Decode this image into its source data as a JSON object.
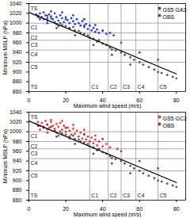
{
  "chart_data": [
    {
      "type": "scatter",
      "x_label": "Maximum wind speed (m/s)",
      "y_label": "Minimum MSLP (hPa)",
      "xlim": [
        0,
        85
      ],
      "xticks": [
        0,
        20,
        40,
        60,
        80
      ],
      "ylim": [
        860,
        1040
      ],
      "yticks": [
        860,
        880,
        900,
        920,
        940,
        960,
        980,
        1000,
        1020,
        1040
      ],
      "legend": "top-right",
      "x_categories": [
        {
          "label": "TS",
          "value": 0
        },
        {
          "label": "C1",
          "value": 33
        },
        {
          "label": "C2",
          "value": 43
        },
        {
          "label": "C3",
          "value": 50
        },
        {
          "label": "C4",
          "value": 58
        },
        {
          "label": "C5",
          "value": 70
        }
      ],
      "y_categories": [
        {
          "label": "TS",
          "value": 1040
        },
        {
          "label": "C1",
          "value": 1000
        },
        {
          "label": "C2",
          "value": 980
        },
        {
          "label": "C3",
          "value": 965
        },
        {
          "label": "C4",
          "value": 945
        },
        {
          "label": "C5",
          "value": 920
        }
      ],
      "series": [
        {
          "name": "GS5 GA3",
          "color": "#2f3fe0",
          "marker": "circle",
          "x": [
            4,
            5,
            6,
            7,
            8,
            9,
            10,
            11,
            12,
            13,
            14,
            15,
            16,
            17,
            18,
            19,
            20,
            21,
            22,
            23,
            24,
            25,
            26,
            27,
            28,
            29,
            30,
            31,
            32,
            33,
            34,
            35,
            36,
            37,
            38,
            40,
            42,
            44,
            46,
            12,
            18,
            24,
            30,
            36,
            6,
            10,
            16,
            22
          ],
          "values": [
            1018,
            1015,
            1020,
            1012,
            1022,
            1016,
            1010,
            1018,
            1014,
            1008,
            1020,
            1012,
            1005,
            1016,
            1010,
            1002,
            1012,
            1006,
            1000,
            1010,
            1004,
            998,
            1008,
            1000,
            995,
            1004,
            992,
            998,
            988,
            995,
            985,
            990,
            982,
            987,
            980,
            984,
            978,
            980,
            975,
            1024,
            1022,
            1016,
            1008,
            996,
            1008,
            1000,
            994,
            990
          ]
        },
        {
          "name": "OBS",
          "color": "#555555",
          "marker": "circle",
          "x": [
            5,
            8,
            10,
            12,
            14,
            15,
            17,
            18,
            20,
            22,
            24,
            25,
            27,
            28,
            30,
            32,
            33,
            35,
            37,
            38,
            40,
            42,
            44,
            45,
            47,
            50,
            52,
            55,
            57,
            60,
            62,
            65,
            68,
            70,
            72,
            75,
            78,
            80,
            10,
            20,
            30,
            40,
            50,
            60,
            70,
            15,
            25,
            35,
            45,
            55
          ],
          "values": [
            1012,
            1008,
            1005,
            1010,
            1002,
            998,
            1000,
            996,
            994,
            990,
            992,
            985,
            984,
            980,
            978,
            975,
            970,
            968,
            962,
            965,
            958,
            955,
            950,
            946,
            944,
            940,
            935,
            930,
            925,
            920,
            915,
            910,
            905,
            900,
            898,
            894,
            890,
            887,
            1015,
            1008,
            995,
            985,
            960,
            940,
            925,
            990,
            975,
            955,
            935,
            915
          ]
        },
        {
          "type": "line",
          "color": "#000000",
          "x": [
            0,
            80
          ],
          "values": [
            1022,
            896
          ]
        }
      ]
    },
    {
      "type": "scatter",
      "x_label": "Maximum wind speed (m/s)",
      "y_label": "Minimum MSLP (hPa)",
      "xlim": [
        0,
        85
      ],
      "xticks": [
        0,
        20,
        40,
        60,
        80
      ],
      "ylim": [
        860,
        1040
      ],
      "yticks": [
        860,
        880,
        900,
        920,
        940,
        960,
        980,
        1000,
        1020,
        1040
      ],
      "legend": "top-right",
      "x_categories": [
        {
          "label": "TS",
          "value": 0
        },
        {
          "label": "C1",
          "value": 33
        },
        {
          "label": "C2",
          "value": 43
        },
        {
          "label": "C3",
          "value": 50
        },
        {
          "label": "C4",
          "value": 58
        },
        {
          "label": "C5",
          "value": 70
        }
      ],
      "y_categories": [
        {
          "label": "TS",
          "value": 1040
        },
        {
          "label": "C1",
          "value": 1000
        },
        {
          "label": "C2",
          "value": 980
        },
        {
          "label": "C3",
          "value": 965
        },
        {
          "label": "C4",
          "value": 945
        },
        {
          "label": "C5",
          "value": 920
        }
      ],
      "series": [
        {
          "name": "GS5 GC2",
          "color": "#f03a3a",
          "marker": "circle",
          "x": [
            4,
            5,
            6,
            7,
            8,
            9,
            10,
            11,
            12,
            13,
            14,
            15,
            16,
            17,
            18,
            19,
            20,
            21,
            22,
            23,
            24,
            25,
            26,
            27,
            28,
            29,
            30,
            31,
            32,
            33,
            34,
            35,
            36,
            37,
            38,
            40,
            42,
            44,
            48,
            12,
            18,
            24,
            30,
            36,
            6,
            10,
            16,
            22
          ],
          "values": [
            1016,
            1020,
            1012,
            1018,
            1010,
            1022,
            1014,
            1008,
            1020,
            1012,
            1006,
            1016,
            1010,
            1018,
            1004,
            1012,
            1000,
            1008,
            1002,
            994,
            1006,
            996,
            1002,
            990,
            998,
            986,
            994,
            984,
            990,
            980,
            988,
            976,
            984,
            972,
            980,
            970,
            975,
            968,
            965,
            1024,
            1022,
            1014,
            1004,
            992,
            1004,
            998,
            992,
            986
          ]
        },
        {
          "name": "OBS",
          "color": "#555555",
          "marker": "circle",
          "x": [
            5,
            8,
            10,
            12,
            14,
            15,
            17,
            18,
            20,
            22,
            24,
            25,
            27,
            28,
            30,
            32,
            33,
            35,
            37,
            38,
            40,
            42,
            44,
            45,
            47,
            50,
            52,
            55,
            57,
            60,
            62,
            65,
            68,
            70,
            72,
            75,
            78,
            80,
            10,
            20,
            30,
            40,
            50,
            60,
            70,
            15,
            25,
            35,
            45,
            55
          ],
          "values": [
            1012,
            1008,
            1005,
            1010,
            1002,
            998,
            1000,
            996,
            994,
            990,
            992,
            985,
            984,
            980,
            978,
            975,
            970,
            968,
            962,
            965,
            958,
            955,
            950,
            946,
            944,
            940,
            935,
            930,
            925,
            920,
            915,
            910,
            905,
            900,
            898,
            894,
            890,
            887,
            1015,
            1008,
            995,
            985,
            960,
            940,
            925,
            990,
            975,
            955,
            935,
            915
          ]
        },
        {
          "type": "line",
          "color": "#000000",
          "x": [
            0,
            80
          ],
          "values": [
            1022,
            896
          ]
        }
      ]
    }
  ]
}
